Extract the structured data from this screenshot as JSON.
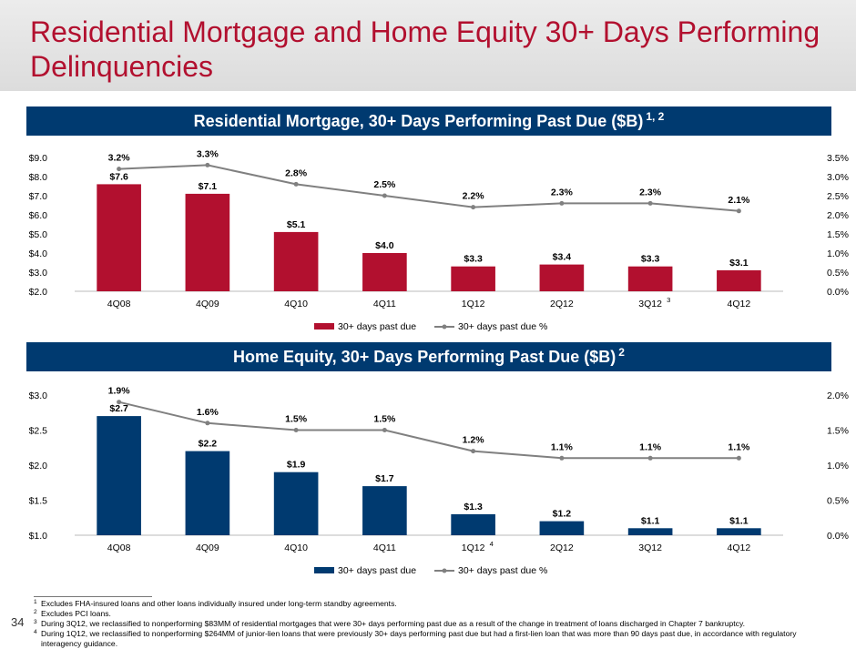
{
  "page": {
    "title": "Residential Mortgage and Home Equity 30+ Days Performing Delinquencies",
    "page_number": "34"
  },
  "colors": {
    "title": "#b2102f",
    "banner": "#003a70",
    "mortgage_bar": "#b2102f",
    "home_equity_bar": "#003a70",
    "line": "#808080"
  },
  "chart_data": [
    {
      "type": "bar",
      "title": "Residential Mortgage, 30+ Days Performing Past Due ($B)",
      "title_superscript": "1, 2",
      "categories": [
        "4Q08",
        "4Q09",
        "4Q10",
        "4Q11",
        "1Q12",
        "2Q12",
        "3Q12",
        "4Q12"
      ],
      "category_notes": {
        "3Q12": "3"
      },
      "series": [
        {
          "name": "30+ days past due",
          "type": "bar",
          "axis": "left",
          "values": [
            7.6,
            7.1,
            5.1,
            4.0,
            3.3,
            3.4,
            3.3,
            3.1
          ],
          "labels": [
            "$7.6",
            "$7.1",
            "$5.1",
            "$4.0",
            "$3.3",
            "$3.4",
            "$3.3",
            "$3.1"
          ]
        },
        {
          "name": "30+ days past due %",
          "type": "line",
          "axis": "right",
          "values": [
            3.2,
            3.3,
            2.8,
            2.5,
            2.2,
            2.3,
            2.3,
            2.1
          ],
          "labels": [
            "3.2%",
            "3.3%",
            "2.8%",
            "2.5%",
            "2.2%",
            "2.3%",
            "2.3%",
            "2.1%"
          ]
        }
      ],
      "ylim": [
        2.0,
        9.0
      ],
      "y2lim": [
        0.0,
        3.5
      ],
      "yticks": [
        "$2.0",
        "$3.0",
        "$4.0",
        "$5.0",
        "$6.0",
        "$7.0",
        "$8.0",
        "$9.0"
      ],
      "y2ticks": [
        "0.0%",
        "0.5%",
        "1.0%",
        "1.5%",
        "2.0%",
        "2.5%",
        "3.0%",
        "3.5%"
      ],
      "grid": false,
      "legend": "bottom"
    },
    {
      "type": "bar",
      "title": "Home Equity, 30+ Days Performing Past Due ($B)",
      "title_superscript": "2",
      "categories": [
        "4Q08",
        "4Q09",
        "4Q10",
        "4Q11",
        "1Q12",
        "2Q12",
        "3Q12",
        "4Q12"
      ],
      "category_notes": {
        "1Q12": "4"
      },
      "series": [
        {
          "name": "30+ days past due",
          "type": "bar",
          "axis": "left",
          "values": [
            2.7,
            2.2,
            1.9,
            1.7,
            1.3,
            1.2,
            1.1,
            1.1
          ],
          "labels": [
            "$2.7",
            "$2.2",
            "$1.9",
            "$1.7",
            "$1.3",
            "$1.2",
            "$1.1",
            "$1.1"
          ]
        },
        {
          "name": "30+ days past due %",
          "type": "line",
          "axis": "right",
          "values": [
            1.9,
            1.6,
            1.5,
            1.5,
            1.2,
            1.1,
            1.1,
            1.1
          ],
          "labels": [
            "1.9%",
            "1.6%",
            "1.5%",
            "1.5%",
            "1.2%",
            "1.1%",
            "1.1%",
            "1.1%"
          ]
        }
      ],
      "ylim": [
        1.0,
        3.0
      ],
      "y2lim": [
        0.0,
        2.0
      ],
      "yticks": [
        "$1.0",
        "$1.5",
        "$2.0",
        "$2.5",
        "$3.0"
      ],
      "y2ticks": [
        "0.0%",
        "0.5%",
        "1.0%",
        "1.5%",
        "2.0%"
      ],
      "grid": false,
      "legend": "bottom"
    }
  ],
  "footnotes": [
    {
      "num": "1",
      "text": "Excludes FHA-insured loans and other loans individually insured under long-term standby agreements."
    },
    {
      "num": "2",
      "text": "Excludes PCI loans."
    },
    {
      "num": "3",
      "text": "During 3Q12, we reclassified to nonperforming $83MM of residential mortgages that were 30+ days performing past due as a result of the change in treatment of loans discharged in Chapter 7 bankruptcy."
    },
    {
      "num": "4",
      "text": "During 1Q12, we reclassified to nonperforming $264MM of junior-lien loans that were previously 30+ days performing past due but had a first-lien loan that was more than 90 days past due, in accordance with regulatory interagency guidance."
    }
  ]
}
